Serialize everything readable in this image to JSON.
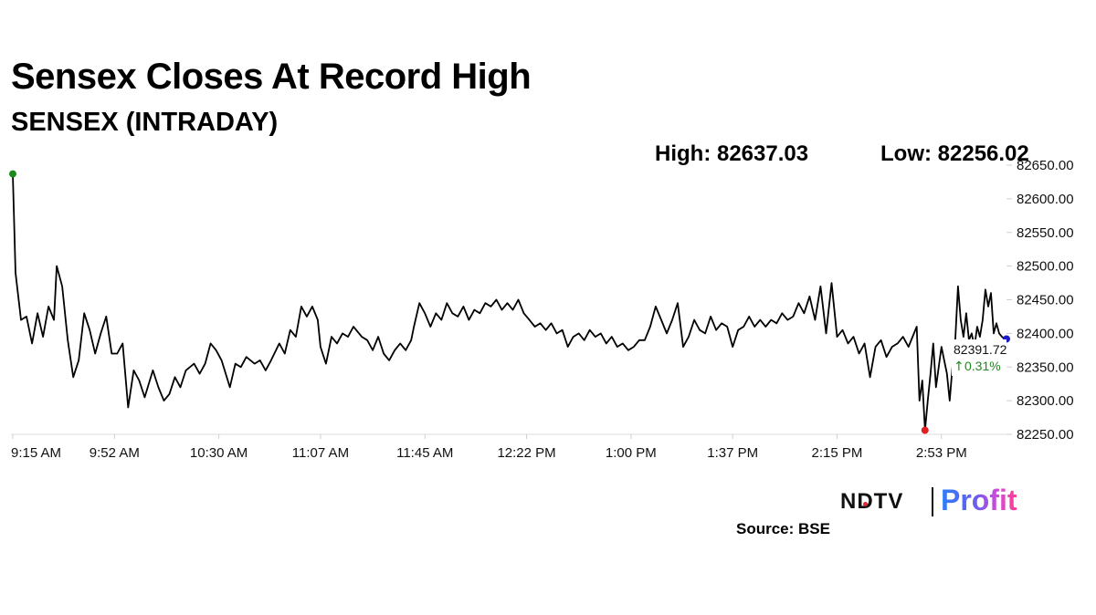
{
  "header": {
    "title": "Sensex Closes At Record High",
    "subtitle": "SENSEX (INTRADAY)",
    "high_label": "High: 82637.03",
    "low_label": "Low: 82256.02"
  },
  "chart_data": {
    "type": "line",
    "title": "Sensex Closes At Record High",
    "subtitle": "SENSEX (INTRADAY)",
    "xlabel": "",
    "ylabel": "",
    "x_ticks": [
      "9:15 AM",
      "9:52 AM",
      "10:30 AM",
      "11:07 AM",
      "11:45 AM",
      "12:22 PM",
      "1:00 PM",
      "1:37 PM",
      "2:15 PM",
      "2:53 PM"
    ],
    "y_ticks": [
      "82250.00",
      "82300.00",
      "82350.00",
      "82400.00",
      "82450.00",
      "82500.00",
      "82550.00",
      "82600.00",
      "82650.00"
    ],
    "ylim": [
      82250,
      82650
    ],
    "grid": false,
    "high": 82637.03,
    "low": 82256.02,
    "last_value": "82391.72",
    "change": "0.31%",
    "series": [
      {
        "points": [
          [
            "9:15 AM",
            82637.03
          ],
          [
            "9:16 AM",
            82490
          ],
          [
            "9:18 AM",
            82420
          ],
          [
            "9:20 AM",
            82425
          ],
          [
            "9:22 AM",
            82385
          ],
          [
            "9:24 AM",
            82430
          ],
          [
            "9:26 AM",
            82395
          ],
          [
            "9:28 AM",
            82440
          ],
          [
            "9:30 AM",
            82420
          ],
          [
            "9:31 AM",
            82500
          ],
          [
            "9:33 AM",
            82470
          ],
          [
            "9:35 AM",
            82390
          ],
          [
            "9:37 AM",
            82335
          ],
          [
            "9:39 AM",
            82360
          ],
          [
            "9:41 AM",
            82430
          ],
          [
            "9:43 AM",
            82405
          ],
          [
            "9:45 AM",
            82370
          ],
          [
            "9:47 AM",
            82400
          ],
          [
            "9:49 AM",
            82425
          ],
          [
            "9:51 AM",
            82370
          ],
          [
            "9:53 AM",
            82370
          ],
          [
            "9:55 AM",
            82385
          ],
          [
            "9:57 AM",
            82290
          ],
          [
            "9:59 AM",
            82345
          ],
          [
            "10:01 AM",
            82330
          ],
          [
            "10:03 AM",
            82305
          ],
          [
            "10:06 AM",
            82345
          ],
          [
            "10:08 AM",
            82320
          ],
          [
            "10:10 AM",
            82300
          ],
          [
            "10:12 AM",
            82310
          ],
          [
            "10:14 AM",
            82335
          ],
          [
            "10:16 AM",
            82320
          ],
          [
            "10:18 AM",
            82345
          ],
          [
            "10:21 AM",
            82355
          ],
          [
            "10:23 AM",
            82340
          ],
          [
            "10:25 AM",
            82355
          ],
          [
            "10:27 AM",
            82385
          ],
          [
            "10:29 AM",
            82375
          ],
          [
            "10:31 AM",
            82360
          ],
          [
            "10:34 AM",
            82320
          ],
          [
            "10:36 AM",
            82355
          ],
          [
            "10:38 AM",
            82350
          ],
          [
            "10:40 AM",
            82365
          ],
          [
            "10:43 AM",
            82355
          ],
          [
            "10:45 AM",
            82360
          ],
          [
            "10:47 AM",
            82345
          ],
          [
            "10:49 AM",
            82360
          ],
          [
            "10:52 AM",
            82385
          ],
          [
            "10:54 AM",
            82370
          ],
          [
            "10:56 AM",
            82405
          ],
          [
            "10:58 AM",
            82395
          ],
          [
            "11:00 AM",
            82440
          ],
          [
            "11:02 AM",
            82425
          ],
          [
            "11:04 AM",
            82440
          ],
          [
            "11:06 AM",
            82420
          ],
          [
            "11:07 AM",
            82380
          ],
          [
            "11:09 AM",
            82355
          ],
          [
            "11:11 AM",
            82395
          ],
          [
            "11:13 AM",
            82385
          ],
          [
            "11:15 AM",
            82400
          ],
          [
            "11:17 AM",
            82395
          ],
          [
            "11:19 AM",
            82410
          ],
          [
            "11:22 AM",
            82395
          ],
          [
            "11:24 AM",
            82390
          ],
          [
            "11:26 AM",
            82375
          ],
          [
            "11:28 AM",
            82395
          ],
          [
            "11:30 AM",
            82370
          ],
          [
            "11:32 AM",
            82360
          ],
          [
            "11:34 AM",
            82375
          ],
          [
            "11:36 AM",
            82385
          ],
          [
            "11:38 AM",
            82375
          ],
          [
            "11:40 AM",
            82390
          ],
          [
            "11:41 AM",
            82410
          ],
          [
            "11:43 AM",
            82445
          ],
          [
            "11:45 AM",
            82430
          ],
          [
            "11:47 AM",
            82410
          ],
          [
            "11:49 AM",
            82430
          ],
          [
            "11:51 AM",
            82420
          ],
          [
            "11:53 AM",
            82445
          ],
          [
            "11:55 AM",
            82430
          ],
          [
            "11:57 AM",
            82425
          ],
          [
            "11:59 AM",
            82440
          ],
          [
            "12:01 PM",
            82420
          ],
          [
            "12:03 PM",
            82435
          ],
          [
            "12:05 PM",
            82430
          ],
          [
            "12:07 PM",
            82445
          ],
          [
            "12:09 PM",
            82440
          ],
          [
            "12:11 PM",
            82450
          ],
          [
            "12:13 PM",
            82435
          ],
          [
            "12:15 PM",
            82445
          ],
          [
            "12:17 PM",
            82435
          ],
          [
            "12:19 PM",
            82450
          ],
          [
            "12:21 PM",
            82430
          ],
          [
            "12:23 PM",
            82420
          ],
          [
            "12:25 PM",
            82410
          ],
          [
            "12:27 PM",
            82415
          ],
          [
            "12:29 PM",
            82405
          ],
          [
            "12:31 PM",
            82415
          ],
          [
            "12:33 PM",
            82400
          ],
          [
            "12:35 PM",
            82405
          ],
          [
            "12:37 PM",
            82380
          ],
          [
            "12:39 PM",
            82395
          ],
          [
            "12:41 PM",
            82400
          ],
          [
            "12:43 PM",
            82390
          ],
          [
            "12:45 PM",
            82405
          ],
          [
            "12:47 PM",
            82395
          ],
          [
            "12:49 PM",
            82400
          ],
          [
            "12:51 PM",
            82385
          ],
          [
            "12:53 PM",
            82395
          ],
          [
            "12:55 PM",
            82380
          ],
          [
            "12:57 PM",
            82385
          ],
          [
            "12:59 PM",
            82375
          ],
          [
            "1:01 PM",
            82380
          ],
          [
            "1:03 PM",
            82390
          ],
          [
            "1:05 PM",
            82390
          ],
          [
            "1:07 PM",
            82410
          ],
          [
            "1:09 PM",
            82440
          ],
          [
            "1:11 PM",
            82420
          ],
          [
            "1:13 PM",
            82400
          ],
          [
            "1:15 PM",
            82420
          ],
          [
            "1:17 PM",
            82445
          ],
          [
            "1:19 PM",
            82380
          ],
          [
            "1:21 PM",
            82395
          ],
          [
            "1:23 PM",
            82420
          ],
          [
            "1:25 PM",
            82405
          ],
          [
            "1:27 PM",
            82400
          ],
          [
            "1:29 PM",
            82425
          ],
          [
            "1:31 PM",
            82405
          ],
          [
            "1:33 PM",
            82415
          ],
          [
            "1:35 PM",
            82410
          ],
          [
            "1:37 PM",
            82380
          ],
          [
            "1:39 PM",
            82405
          ],
          [
            "1:41 PM",
            82410
          ],
          [
            "1:43 PM",
            82425
          ],
          [
            "1:45 PM",
            82410
          ],
          [
            "1:47 PM",
            82420
          ],
          [
            "1:49 PM",
            82410
          ],
          [
            "1:51 PM",
            82420
          ],
          [
            "1:53 PM",
            82415
          ],
          [
            "1:55 PM",
            82430
          ],
          [
            "1:57 PM",
            82420
          ],
          [
            "1:59 PM",
            82425
          ],
          [
            "2:01 PM",
            82445
          ],
          [
            "2:03 PM",
            82430
          ],
          [
            "2:05 PM",
            82455
          ],
          [
            "2:07 PM",
            82420
          ],
          [
            "2:09 PM",
            82470
          ],
          [
            "2:11 PM",
            82400
          ],
          [
            "2:13 PM",
            82475
          ],
          [
            "2:15 PM",
            82395
          ],
          [
            "2:17 PM",
            82405
          ],
          [
            "2:19 PM",
            82385
          ],
          [
            "2:21 PM",
            82395
          ],
          [
            "2:23 PM",
            82370
          ],
          [
            "2:25 PM",
            82385
          ],
          [
            "2:27 PM",
            82335
          ],
          [
            "2:29 PM",
            82380
          ],
          [
            "2:31 PM",
            82390
          ],
          [
            "2:33 PM",
            82365
          ],
          [
            "2:35 PM",
            82380
          ],
          [
            "2:37 PM",
            82385
          ],
          [
            "2:39 PM",
            82395
          ],
          [
            "2:41 PM",
            82380
          ],
          [
            "2:43 PM",
            82400
          ],
          [
            "2:44 PM",
            82410
          ],
          [
            "2:45 PM",
            82300
          ],
          [
            "2:46 PM",
            82330
          ],
          [
            "2:47 PM",
            82256.02
          ],
          [
            "2:48 PM",
            82300
          ],
          [
            "2:49 PM",
            82340
          ],
          [
            "2:50 PM",
            82385
          ],
          [
            "2:51 PM",
            82320
          ],
          [
            "2:52 PM",
            82350
          ],
          [
            "2:53 PM",
            82380
          ],
          [
            "2:54 PM",
            82360
          ],
          [
            "2:55 PM",
            82340
          ],
          [
            "2:56 PM",
            82300
          ],
          [
            "2:57 PM",
            82350
          ],
          [
            "2:58 PM",
            82390
          ],
          [
            "2:59 PM",
            82470
          ],
          [
            "3:00 PM",
            82420
          ],
          [
            "3:01 PM",
            82395
          ],
          [
            "3:02 PM",
            82430
          ],
          [
            "3:03 PM",
            82390
          ],
          [
            "3:04 PM",
            82400
          ],
          [
            "3:05 PM",
            82380
          ],
          [
            "3:06 PM",
            82410
          ],
          [
            "3:07 PM",
            82395
          ],
          [
            "3:08 PM",
            82420
          ],
          [
            "3:09 PM",
            82465
          ],
          [
            "3:10 PM",
            82440
          ],
          [
            "3:11 PM",
            82460
          ],
          [
            "3:12 PM",
            82400
          ],
          [
            "3:13 PM",
            82415
          ],
          [
            "3:14 PM",
            82400
          ],
          [
            "3:15 PM",
            82395
          ],
          [
            "3:16 PM",
            82391.72
          ]
        ]
      }
    ],
    "marker_colors": {
      "high": "#1a8a1a",
      "low": "#e02020",
      "last": "#1a1acc"
    },
    "change_color": "#1a8a1a"
  },
  "footer": {
    "source": "Source: BSE",
    "logo_left": "NDTV",
    "logo_right": "Profit"
  }
}
